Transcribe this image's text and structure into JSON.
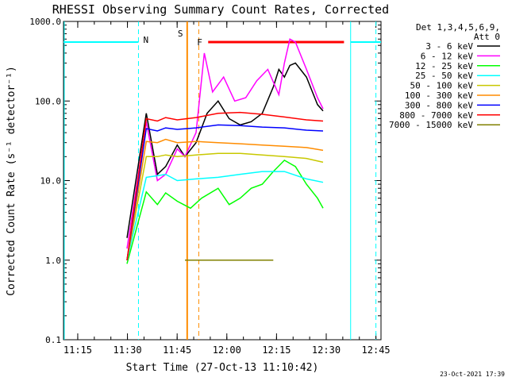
{
  "chart_data": {
    "type": "line",
    "title": "RHESSI Observing Summary Count Rates, Corrected",
    "xlabel": "Start Time (27-Oct-13 11:10:42)",
    "ylabel": "Corrected Count Rate (s⁻¹ detector⁻¹)",
    "yscale": "log",
    "ylim": [
      0.1,
      1000
    ],
    "xlim": [
      0,
      5750
    ],
    "x_units": "seconds after 11:10:42",
    "yticks": [
      {
        "label": "0.1",
        "v": 0.1
      },
      {
        "label": "1.0",
        "v": 1
      },
      {
        "label": "10.0",
        "v": 10
      },
      {
        "label": "100.0",
        "v": 100
      },
      {
        "label": "1000.0",
        "v": 1000
      }
    ],
    "xticks": [
      {
        "label": "11:15",
        "t": 258
      },
      {
        "label": "11:30",
        "t": 1158
      },
      {
        "label": "11:45",
        "t": 2058
      },
      {
        "label": "12:00",
        "t": 2958
      },
      {
        "label": "12:15",
        "t": 3858
      },
      {
        "label": "12:30",
        "t": 4758
      },
      {
        "label": "12:45",
        "t": 5658
      }
    ],
    "legend": {
      "placement": "right",
      "header": [
        "Det 1,3,4,5,6,9,",
        "Att 0"
      ]
    },
    "series": [
      {
        "name": "3 - 6 keV",
        "color": "#000000",
        "points": [
          [
            1150,
            1.9
          ],
          [
            1500,
            70
          ],
          [
            1700,
            12
          ],
          [
            1850,
            15
          ],
          [
            2060,
            28
          ],
          [
            2200,
            20
          ],
          [
            2400,
            30
          ],
          [
            2600,
            70
          ],
          [
            2800,
            100
          ],
          [
            3000,
            60
          ],
          [
            3200,
            50
          ],
          [
            3400,
            55
          ],
          [
            3600,
            70
          ],
          [
            3800,
            150
          ],
          [
            3900,
            250
          ],
          [
            4000,
            200
          ],
          [
            4100,
            280
          ],
          [
            4200,
            300
          ],
          [
            4400,
            200
          ],
          [
            4600,
            90
          ],
          [
            4700,
            75
          ]
        ]
      },
      {
        "name": "6 - 12 keV",
        "color": "#ff00ff",
        "points": [
          [
            1150,
            1.4
          ],
          [
            1500,
            55
          ],
          [
            1700,
            10
          ],
          [
            1850,
            12
          ],
          [
            2060,
            25
          ],
          [
            2200,
            20
          ],
          [
            2400,
            40
          ],
          [
            2550,
            400
          ],
          [
            2700,
            130
          ],
          [
            2900,
            200
          ],
          [
            3100,
            100
          ],
          [
            3300,
            110
          ],
          [
            3500,
            180
          ],
          [
            3700,
            250
          ],
          [
            3900,
            120
          ],
          [
            4000,
            300
          ],
          [
            4100,
            600
          ],
          [
            4200,
            550
          ],
          [
            4400,
            250
          ],
          [
            4600,
            110
          ],
          [
            4700,
            80
          ]
        ]
      },
      {
        "name": "12 - 25 keV",
        "color": "#00ff00",
        "points": [
          [
            1150,
            0.9
          ],
          [
            1500,
            7.2
          ],
          [
            1700,
            5
          ],
          [
            1850,
            7
          ],
          [
            2060,
            5.5
          ],
          [
            2300,
            4.5
          ],
          [
            2500,
            6
          ],
          [
            2800,
            8
          ],
          [
            3000,
            5
          ],
          [
            3200,
            6
          ],
          [
            3400,
            8
          ],
          [
            3600,
            9
          ],
          [
            3800,
            13
          ],
          [
            4000,
            18
          ],
          [
            4200,
            15
          ],
          [
            4400,
            9
          ],
          [
            4600,
            6
          ],
          [
            4700,
            4.5
          ]
        ]
      },
      {
        "name": "25 - 50 keV",
        "color": "#00ffff",
        "points": [
          [
            1150,
            1
          ],
          [
            1500,
            11
          ],
          [
            1700,
            11.5
          ],
          [
            1850,
            12
          ],
          [
            2060,
            10
          ],
          [
            2400,
            10.5
          ],
          [
            2800,
            11
          ],
          [
            3200,
            12
          ],
          [
            3600,
            13
          ],
          [
            4000,
            13
          ],
          [
            4400,
            10.5
          ],
          [
            4700,
            9.5
          ]
        ]
      },
      {
        "name": "50 - 100 keV",
        "color": "#c8c800",
        "points": [
          [
            1150,
            1
          ],
          [
            1500,
            20
          ],
          [
            1700,
            20
          ],
          [
            1850,
            21
          ],
          [
            2060,
            20
          ],
          [
            2400,
            21
          ],
          [
            2800,
            22
          ],
          [
            3200,
            22
          ],
          [
            3600,
            21
          ],
          [
            4000,
            20
          ],
          [
            4400,
            19
          ],
          [
            4700,
            17
          ]
        ]
      },
      {
        "name": "100 - 300 keV",
        "color": "#ff8c00",
        "points": [
          [
            1150,
            1
          ],
          [
            1500,
            31
          ],
          [
            1700,
            30
          ],
          [
            1850,
            33
          ],
          [
            2060,
            30
          ],
          [
            2400,
            31
          ],
          [
            2800,
            30
          ],
          [
            3200,
            29
          ],
          [
            3600,
            28
          ],
          [
            4000,
            27
          ],
          [
            4400,
            26
          ],
          [
            4700,
            24
          ]
        ]
      },
      {
        "name": "300 - 800 keV",
        "color": "#0000ff",
        "points": [
          [
            1150,
            1
          ],
          [
            1500,
            45
          ],
          [
            1700,
            42
          ],
          [
            1850,
            46
          ],
          [
            2060,
            44
          ],
          [
            2400,
            46
          ],
          [
            2800,
            50
          ],
          [
            3200,
            49
          ],
          [
            3600,
            47
          ],
          [
            4000,
            46
          ],
          [
            4400,
            43
          ],
          [
            4700,
            42
          ]
        ]
      },
      {
        "name": "800 - 7000 keV",
        "color": "#ff0000",
        "points": [
          [
            1150,
            1
          ],
          [
            1500,
            60
          ],
          [
            1700,
            56
          ],
          [
            1850,
            62
          ],
          [
            2060,
            58
          ],
          [
            2400,
            62
          ],
          [
            2800,
            70
          ],
          [
            3200,
            72
          ],
          [
            3600,
            68
          ],
          [
            4000,
            63
          ],
          [
            4400,
            58
          ],
          [
            4700,
            56
          ]
        ]
      },
      {
        "name": "7000 - 15000 keV",
        "color": "#808000",
        "points": [
          [
            2200,
            1.0
          ],
          [
            3800,
            1.0
          ]
        ]
      }
    ],
    "annotations": [
      {
        "label": "N",
        "color": "#00ffff",
        "kind": "night",
        "intervals": [
          [
            0,
            1358
          ],
          [
            5200,
            5750
          ]
        ],
        "level": 550,
        "dashed_at": [
          1358,
          5658
        ]
      },
      {
        "label": "S",
        "color": "#ff8c00",
        "kind": "saa",
        "intervals": [
          [
            2240,
            2450
          ]
        ],
        "solid_at": [
          2240
        ],
        "dashed_at": [
          2450
        ]
      },
      {
        "label": "F",
        "color": "#ff0000",
        "kind": "flare",
        "intervals": [
          [
            2620,
            5080
          ]
        ],
        "level": 550
      }
    ],
    "footer": "23-Oct-2021 17:39"
  }
}
